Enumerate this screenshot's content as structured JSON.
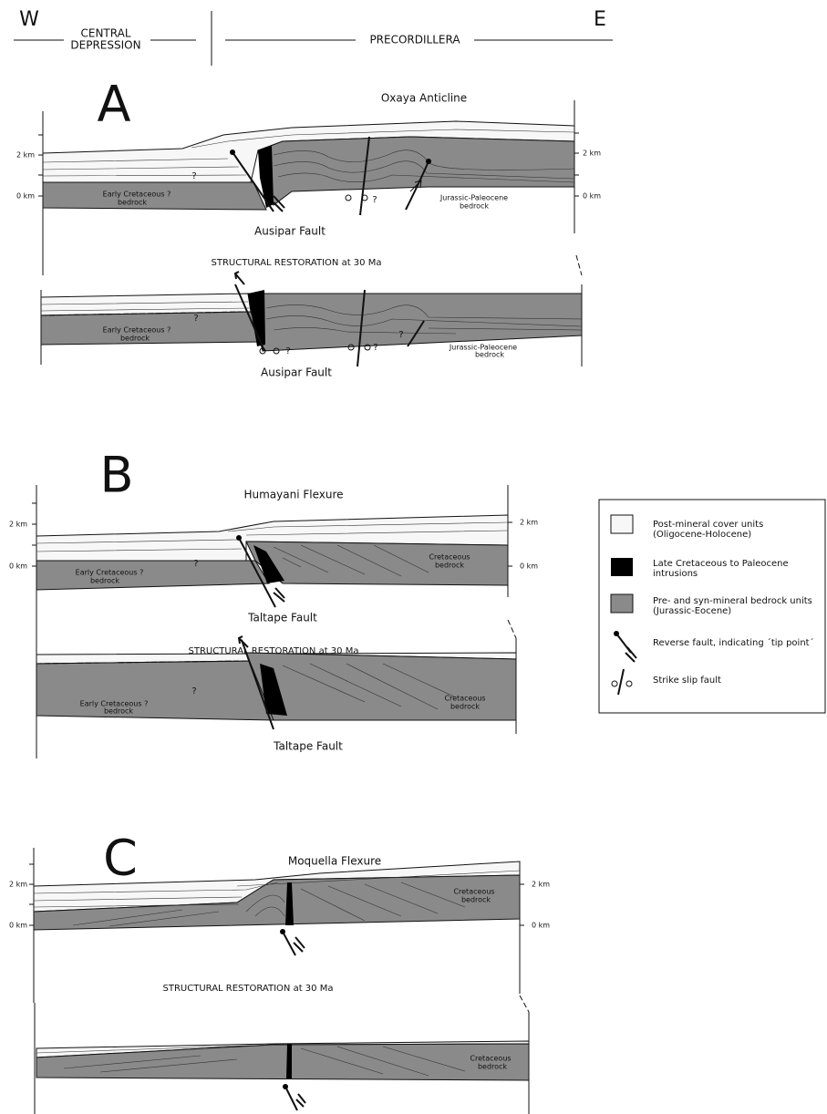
{
  "header": {
    "west": "W",
    "east": "E",
    "central_depression": [
      "CENTRAL",
      "DEPRESSION"
    ],
    "precordillera": "PRECORDILLERA"
  },
  "panels": [
    {
      "label": "A",
      "title": "Oxaya Anticline",
      "scale_left": [
        "2 km",
        "0 km"
      ],
      "scale_right": [
        "2 km",
        "0 km"
      ],
      "section_units": [
        [
          "Early Cretaceous ?",
          "bedrock"
        ],
        [
          "Jurassic-Paleocene",
          "bedrock"
        ]
      ],
      "section_queries": [
        "?",
        "?"
      ],
      "fault": "Ausipar Fault",
      "restoration_title": "STRUCTURAL RESTORATION  at  30 Ma",
      "restoration_units": [
        [
          "Early Cretaceous ?",
          "bedrock"
        ],
        [
          "Jurassic-Paleocene",
          "bedrock"
        ]
      ],
      "restoration_queries": [
        "?",
        "?",
        "?",
        "?"
      ],
      "restoration_fault": "Ausipar Fault"
    },
    {
      "label": "B",
      "title": "Humayani Flexure",
      "scale_left": [
        "2 km",
        "0 km"
      ],
      "scale_right": [
        "2 km",
        "0 km"
      ],
      "section_units": [
        [
          "Early Cretaceous ?",
          "bedrock"
        ],
        [
          "Cretaceous",
          "bedrock"
        ]
      ],
      "section_queries": [
        "?"
      ],
      "fault": "Taltape Fault",
      "restoration_title": "STRUCTURAL RESTORATION  at  30 Ma",
      "restoration_units": [
        [
          "Early Cretaceous ?",
          "bedrock"
        ],
        [
          "Cretaceous",
          "bedrock"
        ]
      ],
      "restoration_queries": [
        "?"
      ],
      "restoration_fault": "Taltape Fault"
    },
    {
      "label": "C",
      "title": "Moquella Flexure",
      "scale_left": [
        "2 km",
        "0 km"
      ],
      "scale_right": [
        "2 km",
        "0 km"
      ],
      "section_units": [
        [
          "Cretaceous",
          "bedrock"
        ]
      ],
      "restoration_title": "STRUCTURAL RESTORATION  at  30 Ma",
      "restoration_units": [
        [
          "Cretaceous",
          "bedrock"
        ]
      ]
    }
  ],
  "legend": {
    "items": [
      {
        "label": [
          "Post-mineral cover units",
          "(Oligocene-Holocene)"
        ]
      },
      {
        "label": [
          "Late Cretaceous to Paleocene",
          "intrusions"
        ]
      },
      {
        "label": [
          "Pre- and syn-mineral bedrock units",
          "(Jurassic-Eocene)"
        ]
      },
      {
        "label": [
          "Reverse fault, indicating ´tip point´"
        ]
      },
      {
        "label": [
          "Strike slip fault"
        ]
      }
    ]
  }
}
